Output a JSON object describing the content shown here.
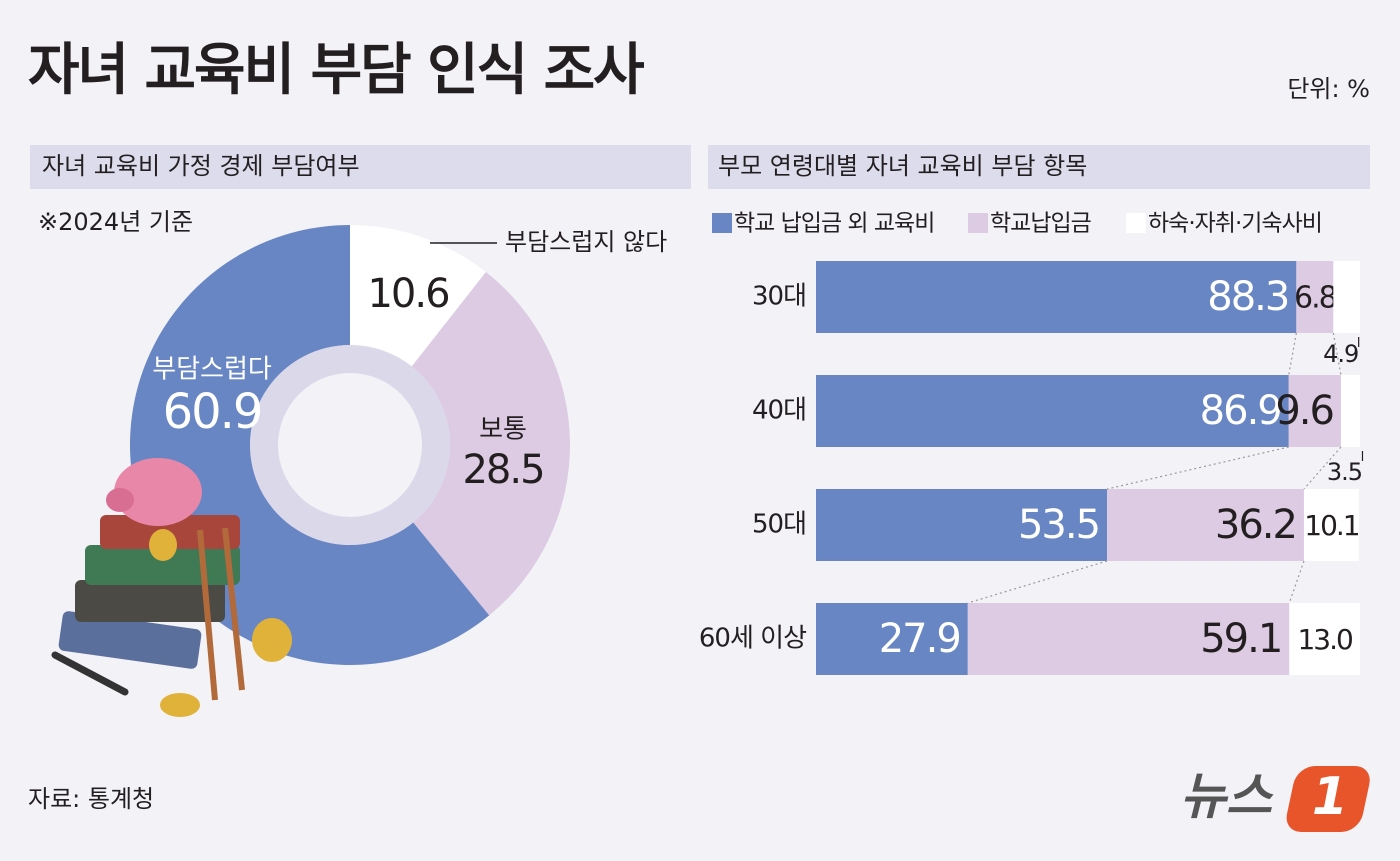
{
  "title": "자녀 교육비 부담 인식 조사",
  "unit": "단위: %",
  "source": "자료: 통계청",
  "logo": {
    "text": "뉴스",
    "mark": "1"
  },
  "chart_data": [
    {
      "type": "donut",
      "title": "자녀 교육비 가정 경제 부담여부",
      "note": "※2024년 기준",
      "categories": [
        "부담스럽지 않다",
        "보통",
        "부담스럽다"
      ],
      "values": [
        10.6,
        28.5,
        60.9
      ],
      "colors": [
        "#ffffff",
        "#dccbe3",
        "#6886c3"
      ]
    },
    {
      "type": "stacked-hbar",
      "title": "부모 연령대별 자녀 교육비 부담 항목",
      "categories": [
        "30대",
        "40대",
        "50대",
        "60세 이상"
      ],
      "series": [
        {
          "name": "학교 납입금 외 교육비",
          "color": "#6886c3",
          "values": [
            88.3,
            86.9,
            53.5,
            27.9
          ]
        },
        {
          "name": "학교납입금",
          "color": "#dccbe3",
          "values": [
            6.8,
            9.6,
            36.2,
            59.1
          ]
        },
        {
          "name": "하숙·자취·기숙사비",
          "color": "#ffffff",
          "values": [
            4.9,
            3.5,
            10.1,
            13.0
          ],
          "value_labels": [
            "4.9",
            "3.5",
            "10.1",
            "13.0"
          ]
        }
      ]
    }
  ]
}
